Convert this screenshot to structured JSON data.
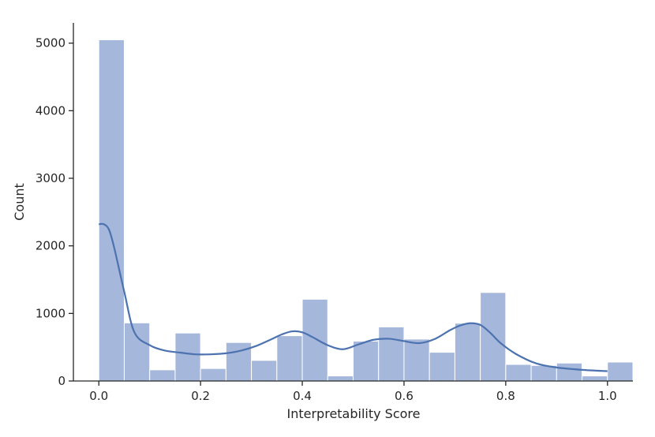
{
  "chart_data": {
    "type": "histogram",
    "xlabel": "Interpretability Score",
    "ylabel": "Count",
    "xlim": [
      -0.05,
      1.05
    ],
    "ylim": [
      0,
      5300
    ],
    "bin_width": 0.05,
    "bins": [
      {
        "x0": 0.0,
        "x1": 0.05,
        "count": 5050
      },
      {
        "x0": 0.05,
        "x1": 0.1,
        "count": 860
      },
      {
        "x0": 0.1,
        "x1": 0.15,
        "count": 165
      },
      {
        "x0": 0.15,
        "x1": 0.2,
        "count": 710
      },
      {
        "x0": 0.2,
        "x1": 0.25,
        "count": 185
      },
      {
        "x0": 0.25,
        "x1": 0.3,
        "count": 570
      },
      {
        "x0": 0.3,
        "x1": 0.35,
        "count": 305
      },
      {
        "x0": 0.35,
        "x1": 0.4,
        "count": 670
      },
      {
        "x0": 0.4,
        "x1": 0.45,
        "count": 1210
      },
      {
        "x0": 0.45,
        "x1": 0.5,
        "count": 75
      },
      {
        "x0": 0.5,
        "x1": 0.55,
        "count": 590
      },
      {
        "x0": 0.55,
        "x1": 0.6,
        "count": 800
      },
      {
        "x0": 0.6,
        "x1": 0.65,
        "count": 620
      },
      {
        "x0": 0.65,
        "x1": 0.7,
        "count": 425
      },
      {
        "x0": 0.7,
        "x1": 0.75,
        "count": 855
      },
      {
        "x0": 0.75,
        "x1": 0.8,
        "count": 1310
      },
      {
        "x0": 0.8,
        "x1": 0.85,
        "count": 245
      },
      {
        "x0": 0.85,
        "x1": 0.9,
        "count": 230
      },
      {
        "x0": 0.9,
        "x1": 0.95,
        "count": 265
      },
      {
        "x0": 0.95,
        "x1": 1.0,
        "count": 75
      },
      {
        "x0": 1.0,
        "x1": 1.05,
        "count": 280
      }
    ],
    "kde": {
      "x": [
        0.0,
        0.01,
        0.02,
        0.03,
        0.05,
        0.07,
        0.1,
        0.13,
        0.16,
        0.19,
        0.22,
        0.25,
        0.28,
        0.31,
        0.34,
        0.36,
        0.38,
        0.4,
        0.42,
        0.45,
        0.48,
        0.51,
        0.54,
        0.57,
        0.6,
        0.63,
        0.66,
        0.69,
        0.71,
        0.73,
        0.75,
        0.77,
        0.79,
        0.82,
        0.86,
        0.9,
        0.95,
        1.0
      ],
      "y": [
        2320,
        2320,
        2240,
        1980,
        1320,
        720,
        530,
        450,
        420,
        395,
        395,
        410,
        450,
        520,
        620,
        690,
        735,
        720,
        650,
        530,
        470,
        540,
        610,
        625,
        590,
        560,
        620,
        750,
        820,
        855,
        830,
        710,
        560,
        400,
        260,
        200,
        165,
        145
      ]
    },
    "xticks": [
      0.0,
      0.2,
      0.4,
      0.6,
      0.8,
      1.0
    ],
    "xtick_labels": [
      "0.0",
      "0.2",
      "0.4",
      "0.6",
      "0.8",
      "1.0"
    ],
    "yticks": [
      0,
      1000,
      2000,
      3000,
      4000,
      5000
    ],
    "ytick_labels": [
      "0",
      "1000",
      "2000",
      "3000",
      "4000",
      "5000"
    ],
    "grid": false,
    "colors": {
      "bar_fill": "#a5b7da",
      "bar_edge": "#ffffff",
      "kde_line": "#4c72b0",
      "axis": "#262626"
    }
  }
}
